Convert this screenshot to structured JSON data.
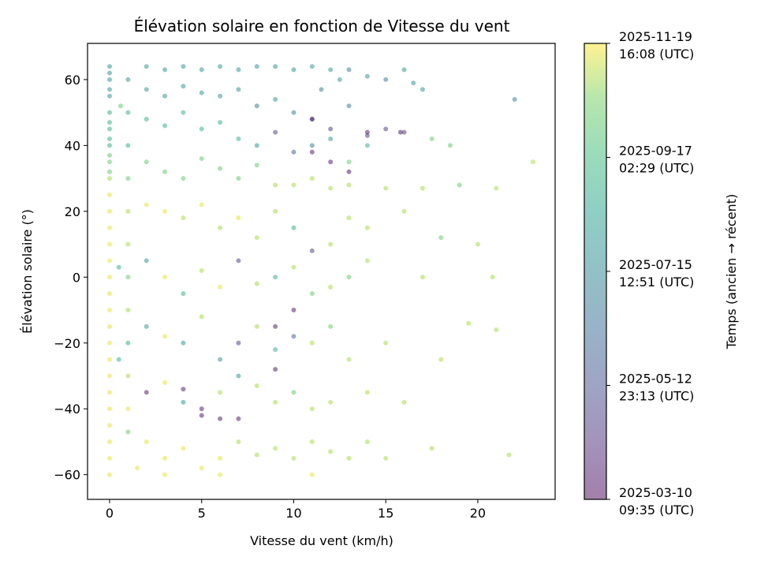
{
  "chart_data": {
    "type": "scatter",
    "title": "Élévation solaire en fonction de Vitesse du vent",
    "xlabel": "Vitesse du vent (km/h)",
    "ylabel": "Élévation solaire (°)",
    "xlim": [
      -1.2,
      24.2
    ],
    "ylim": [
      -67.5,
      71
    ],
    "xticks": [
      0,
      5,
      10,
      15,
      20
    ],
    "yticks": [
      -60,
      -40,
      -20,
      0,
      20,
      40,
      60
    ],
    "grid": false,
    "colormap": "viridis",
    "point_alpha": 0.5,
    "colorbar": {
      "label": "Temps (ancien → récent)",
      "range": [
        "2025-03-10T09:35:00Z",
        "2025-11-19T16:08:00Z"
      ],
      "ticks": [
        {
          "iso": "2025-03-10T09:35:00Z",
          "date": "2025-03-10",
          "time": "09:35 (UTC)"
        },
        {
          "iso": "2025-05-12T23:13:00Z",
          "date": "2025-05-12",
          "time": "23:13 (UTC)"
        },
        {
          "iso": "2025-07-15T12:51:00Z",
          "date": "2025-07-15",
          "time": "12:51 (UTC)"
        },
        {
          "iso": "2025-09-17T02:29:00Z",
          "date": "2025-09-17",
          "time": "02:29 (UTC)"
        },
        {
          "iso": "2025-11-19T16:08:00Z",
          "date": "2025-11-19",
          "time": "16:08 (UTC)"
        }
      ]
    },
    "points_columns": [
      "wind_kmh",
      "elevation_deg",
      "time"
    ],
    "points": [
      [
        0,
        64,
        "2025-07-15"
      ],
      [
        0,
        62,
        "2025-07-15"
      ],
      [
        0,
        60,
        "2025-07-15"
      ],
      [
        0,
        57,
        "2025-07-15"
      ],
      [
        0,
        55,
        "2025-07-15"
      ],
      [
        0,
        50,
        "2025-08-15"
      ],
      [
        0,
        47,
        "2025-08-15"
      ],
      [
        0,
        45,
        "2025-08-15"
      ],
      [
        0,
        42,
        "2025-08-15"
      ],
      [
        0,
        40,
        "2025-08-15"
      ],
      [
        0,
        37,
        "2025-09-15"
      ],
      [
        0,
        35,
        "2025-09-15"
      ],
      [
        0,
        32,
        "2025-09-15"
      ],
      [
        0,
        30,
        "2025-10-15"
      ],
      [
        0,
        25,
        "2025-11-10"
      ],
      [
        0,
        20,
        "2025-11-10"
      ],
      [
        0,
        15,
        "2025-11-10"
      ],
      [
        0,
        10,
        "2025-11-10"
      ],
      [
        0,
        5,
        "2025-11-10"
      ],
      [
        0,
        0,
        "2025-11-10"
      ],
      [
        0,
        -5,
        "2025-11-10"
      ],
      [
        0,
        -10,
        "2025-11-10"
      ],
      [
        0,
        -15,
        "2025-11-10"
      ],
      [
        0,
        -20,
        "2025-11-10"
      ],
      [
        0,
        -25,
        "2025-11-10"
      ],
      [
        0,
        -30,
        "2025-11-10"
      ],
      [
        0,
        -35,
        "2025-11-10"
      ],
      [
        0,
        -40,
        "2025-11-10"
      ],
      [
        0,
        -45,
        "2025-11-10"
      ],
      [
        0,
        -50,
        "2025-11-10"
      ],
      [
        0,
        -55,
        "2025-11-10"
      ],
      [
        0,
        -60,
        "2025-11-10"
      ],
      [
        1,
        60,
        "2025-07-15"
      ],
      [
        1,
        50,
        "2025-08-15"
      ],
      [
        1,
        40,
        "2025-08-15"
      ],
      [
        1,
        30,
        "2025-09-15"
      ],
      [
        1,
        20,
        "2025-10-15"
      ],
      [
        1,
        10,
        "2025-10-15"
      ],
      [
        1,
        0,
        "2025-09-15"
      ],
      [
        1,
        -10,
        "2025-10-15"
      ],
      [
        1,
        -20,
        "2025-08-15"
      ],
      [
        1,
        -30,
        "2025-10-15"
      ],
      [
        1,
        -40,
        "2025-11-10"
      ],
      [
        1,
        -47,
        "2025-09-15"
      ],
      [
        0.6,
        52,
        "2025-09-15"
      ],
      [
        0.5,
        -25,
        "2025-08-15"
      ],
      [
        0.5,
        3,
        "2025-08-15"
      ],
      [
        2,
        64,
        "2025-07-15"
      ],
      [
        3,
        63,
        "2025-07-15"
      ],
      [
        4,
        64,
        "2025-07-15"
      ],
      [
        5,
        63,
        "2025-07-15"
      ],
      [
        6,
        64,
        "2025-07-15"
      ],
      [
        7,
        63,
        "2025-07-15"
      ],
      [
        8,
        64,
        "2025-07-15"
      ],
      [
        9,
        64,
        "2025-07-15"
      ],
      [
        10,
        63,
        "2025-07-15"
      ],
      [
        11,
        64,
        "2025-07-15"
      ],
      [
        12,
        63,
        "2025-07-15"
      ],
      [
        13,
        63,
        "2025-06-20"
      ],
      [
        14,
        61,
        "2025-07-15"
      ],
      [
        15,
        60,
        "2025-06-20"
      ],
      [
        16,
        63,
        "2025-07-15"
      ],
      [
        17,
        57,
        "2025-07-15"
      ],
      [
        16.5,
        59,
        "2025-07-15"
      ],
      [
        22,
        54,
        "2025-06-20"
      ],
      [
        12.5,
        60,
        "2025-07-15"
      ],
      [
        11.5,
        57,
        "2025-06-20"
      ],
      [
        2,
        57,
        "2025-07-15"
      ],
      [
        3,
        55,
        "2025-07-15"
      ],
      [
        4,
        58,
        "2025-07-15"
      ],
      [
        5,
        56,
        "2025-07-15"
      ],
      [
        6,
        55,
        "2025-07-15"
      ],
      [
        7,
        57,
        "2025-07-15"
      ],
      [
        8,
        52,
        "2025-06-20"
      ],
      [
        9,
        54,
        "2025-07-15"
      ],
      [
        10,
        50,
        "2025-06-20"
      ],
      [
        11,
        48,
        "2025-05-20"
      ],
      [
        12,
        45,
        "2025-04-20"
      ],
      [
        13,
        52,
        "2025-06-20"
      ],
      [
        14,
        43,
        "2025-04-20"
      ],
      [
        15,
        45,
        "2025-04-20"
      ],
      [
        16,
        44,
        "2025-04-20"
      ],
      [
        2,
        48,
        "2025-08-15"
      ],
      [
        3,
        46,
        "2025-08-15"
      ],
      [
        4,
        50,
        "2025-08-15"
      ],
      [
        5,
        45,
        "2025-08-15"
      ],
      [
        6,
        47,
        "2025-08-15"
      ],
      [
        7,
        42,
        "2025-08-15"
      ],
      [
        8,
        40,
        "2025-07-15"
      ],
      [
        9,
        44,
        "2025-04-20"
      ],
      [
        10,
        38,
        "2025-05-20"
      ],
      [
        11,
        40,
        "2025-06-20"
      ],
      [
        12,
        42,
        "2025-07-15"
      ],
      [
        13,
        35,
        "2025-09-15"
      ],
      [
        14,
        40,
        "2025-08-15"
      ],
      [
        17.5,
        42,
        "2025-09-15"
      ],
      [
        18.5,
        40,
        "2025-09-15"
      ],
      [
        23,
        35,
        "2025-10-15"
      ],
      [
        2,
        35,
        "2025-09-15"
      ],
      [
        3,
        32,
        "2025-09-15"
      ],
      [
        4,
        30,
        "2025-09-15"
      ],
      [
        5,
        36,
        "2025-09-15"
      ],
      [
        6,
        33,
        "2025-09-15"
      ],
      [
        7,
        30,
        "2025-09-15"
      ],
      [
        8,
        34,
        "2025-09-15"
      ],
      [
        9,
        28,
        "2025-10-15"
      ],
      [
        10,
        28,
        "2025-10-15"
      ],
      [
        11,
        30,
        "2025-10-15"
      ],
      [
        12,
        27,
        "2025-10-15"
      ],
      [
        13,
        28,
        "2025-10-15"
      ],
      [
        15,
        27,
        "2025-10-15"
      ],
      [
        17,
        27,
        "2025-10-15"
      ],
      [
        19,
        28,
        "2025-09-15"
      ],
      [
        21,
        27,
        "2025-10-15"
      ],
      [
        2,
        22,
        "2025-11-10"
      ],
      [
        3,
        20,
        "2025-11-10"
      ],
      [
        4,
        18,
        "2025-10-15"
      ],
      [
        5,
        22,
        "2025-11-10"
      ],
      [
        6,
        15,
        "2025-10-15"
      ],
      [
        7,
        18,
        "2025-11-10"
      ],
      [
        8,
        12,
        "2025-10-15"
      ],
      [
        9,
        20,
        "2025-10-15"
      ],
      [
        10,
        15,
        "2025-08-15"
      ],
      [
        11,
        8,
        "2025-04-20"
      ],
      [
        12,
        10,
        "2025-10-15"
      ],
      [
        13,
        18,
        "2025-10-15"
      ],
      [
        14,
        15,
        "2025-10-15"
      ],
      [
        16,
        20,
        "2025-10-15"
      ],
      [
        18,
        12,
        "2025-09-15"
      ],
      [
        20,
        10,
        "2025-10-15"
      ],
      [
        2,
        5,
        "2025-07-15"
      ],
      [
        3,
        0,
        "2025-11-10"
      ],
      [
        4,
        -5,
        "2025-08-15"
      ],
      [
        5,
        2,
        "2025-10-15"
      ],
      [
        6,
        -3,
        "2025-11-10"
      ],
      [
        7,
        5,
        "2025-04-20"
      ],
      [
        8,
        -2,
        "2025-10-15"
      ],
      [
        9,
        0,
        "2025-08-15"
      ],
      [
        10,
        3,
        "2025-10-15"
      ],
      [
        11,
        -5,
        "2025-09-15"
      ],
      [
        12,
        -3,
        "2025-10-15"
      ],
      [
        13,
        0,
        "2025-09-15"
      ],
      [
        14,
        5,
        "2025-10-15"
      ],
      [
        17,
        0,
        "2025-10-15"
      ],
      [
        20.8,
        0,
        "2025-10-15"
      ],
      [
        19.5,
        -14,
        "2025-10-15"
      ],
      [
        21,
        -16,
        "2025-10-15"
      ],
      [
        2,
        -15,
        "2025-07-15"
      ],
      [
        3,
        -18,
        "2025-11-10"
      ],
      [
        4,
        -20,
        "2025-07-15"
      ],
      [
        5,
        -12,
        "2025-10-15"
      ],
      [
        6,
        -25,
        "2025-07-15"
      ],
      [
        7,
        -20,
        "2025-04-20"
      ],
      [
        8,
        -15,
        "2025-10-15"
      ],
      [
        9,
        -22,
        "2025-08-15"
      ],
      [
        10,
        -18,
        "2025-05-20"
      ],
      [
        11,
        -20,
        "2025-10-15"
      ],
      [
        12,
        -15,
        "2025-09-15"
      ],
      [
        13,
        -25,
        "2025-10-15"
      ],
      [
        15,
        -20,
        "2025-10-15"
      ],
      [
        18,
        -25,
        "2025-10-15"
      ],
      [
        2,
        -35,
        "2025-03-20"
      ],
      [
        3,
        -32,
        "2025-11-10"
      ],
      [
        4,
        -38,
        "2025-07-15"
      ],
      [
        5,
        -40,
        "2025-03-20"
      ],
      [
        6,
        -35,
        "2025-10-15"
      ],
      [
        7,
        -30,
        "2025-07-15"
      ],
      [
        8,
        -33,
        "2025-10-15"
      ],
      [
        9,
        -38,
        "2025-10-15"
      ],
      [
        10,
        -35,
        "2025-09-15"
      ],
      [
        11,
        -40,
        "2025-10-15"
      ],
      [
        12,
        -38,
        "2025-10-15"
      ],
      [
        14,
        -35,
        "2025-10-15"
      ],
      [
        16,
        -38,
        "2025-10-15"
      ],
      [
        2,
        -50,
        "2025-11-10"
      ],
      [
        3,
        -55,
        "2025-11-10"
      ],
      [
        4,
        -52,
        "2025-11-10"
      ],
      [
        5,
        -58,
        "2025-11-10"
      ],
      [
        6,
        -55,
        "2025-11-10"
      ],
      [
        7,
        -50,
        "2025-10-15"
      ],
      [
        8,
        -54,
        "2025-10-15"
      ],
      [
        9,
        -52,
        "2025-10-15"
      ],
      [
        10,
        -55,
        "2025-10-15"
      ],
      [
        11,
        -50,
        "2025-10-15"
      ],
      [
        12,
        -53,
        "2025-10-15"
      ],
      [
        13,
        -55,
        "2025-10-15"
      ],
      [
        14,
        -50,
        "2025-10-15"
      ],
      [
        15,
        -55,
        "2025-10-15"
      ],
      [
        17.5,
        -52,
        "2025-10-15"
      ],
      [
        21.7,
        -54,
        "2025-10-15"
      ],
      [
        11,
        -60,
        "2025-11-10"
      ],
      [
        6,
        -60,
        "2025-11-10"
      ],
      [
        3,
        -60,
        "2025-11-10"
      ],
      [
        1.5,
        -58,
        "2025-11-10"
      ],
      [
        5,
        -42,
        "2025-03-20"
      ],
      [
        6,
        -43,
        "2025-03-20"
      ],
      [
        7,
        -43,
        "2025-03-20"
      ],
      [
        4,
        -34,
        "2025-03-20"
      ],
      [
        9,
        -15,
        "2025-03-20"
      ],
      [
        10,
        -10,
        "2025-03-20"
      ],
      [
        11,
        48,
        "2025-03-20"
      ],
      [
        11,
        38,
        "2025-03-20"
      ],
      [
        12,
        35,
        "2025-03-20"
      ],
      [
        13,
        32,
        "2025-03-20"
      ],
      [
        14,
        44,
        "2025-03-20"
      ],
      [
        15.8,
        44,
        "2025-03-20"
      ],
      [
        9,
        -28,
        "2025-03-20"
      ]
    ]
  }
}
